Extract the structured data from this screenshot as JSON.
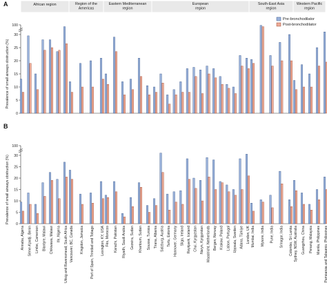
{
  "chart_data": [
    {
      "type": "bar",
      "panel_label": "A",
      "ylabel": "Prevalence of small airways obstruction (%)",
      "ylim": [
        0,
        35
      ],
      "yticks": [
        0,
        5,
        10,
        15,
        20,
        25,
        30
      ],
      "top_tick_label": "100",
      "axis_break": true,
      "legend": {
        "placement": "top-right",
        "entries": [
          {
            "name": "Pre-bronchodilator",
            "color": "#6f8fc0"
          },
          {
            "name": "Post-bronchodilator",
            "color": "#e0917c"
          }
        ]
      },
      "regions": [
        "African region",
        "Region of the Americas",
        "Eastern Mediterranean region",
        "European region",
        "South-East Asia region",
        "Western Pacific region"
      ],
      "groups": [
        {
          "values_pre": [
            13,
            29.5,
            15,
            28,
            28,
            23.5,
            33
          ],
          "values_post": [
            8,
            19,
            9,
            24,
            25,
            24,
            26.5
          ]
        },
        {
          "values_pre": [
            12,
            19,
            20,
            21
          ],
          "values_post": [
            8,
            10,
            10,
            13
          ]
        },
        {
          "values_pre": [
            15,
            29,
            12,
            13,
            21,
            10.5
          ],
          "values_post": [
            11,
            23.5,
            7,
            9,
            14,
            7
          ]
        },
        {
          "values_pre": [
            10,
            15,
            7,
            9,
            12,
            17,
            17.5,
            16.5,
            18,
            17,
            14,
            11,
            10,
            22,
            21
          ],
          "values_post": [
            8,
            11.5,
            3.5,
            7,
            8,
            8,
            14,
            7.5,
            15,
            13.5,
            11,
            9.5,
            7.5,
            18,
            17
          ]
        },
        {
          "values_pre": [
            20.5,
            33.5,
            22,
            27,
            30
          ],
          "values_post": [
            19,
            33,
            18,
            20,
            20
          ]
        },
        {
          "values_pre": [
            12.5,
            18.5,
            15,
            25,
            31
          ],
          "values_post": [
            9,
            10,
            10,
            18,
            19.5
          ]
        }
      ]
    },
    {
      "type": "bar",
      "panel_label": "B",
      "ylabel": "Prevalence of small airways obstruction (%)",
      "ylim": [
        0,
        35
      ],
      "yticks": [
        0,
        5,
        10,
        15,
        20,
        25,
        30
      ],
      "top_tick_label": "100",
      "axis_break": true,
      "groups": [
        {
          "categories": [
            "Annaba, Algeria",
            "Sème-Kpodji, Benin",
            "Limbe, Cameroon",
            "Blantyre, Malawi",
            "Chikwawa, Malawi",
            "Ife, Nigeria",
            "Uitsig and Ravensmead, South Africa"
          ],
          "values_pre": [
            9.5,
            13.5,
            8.5,
            18,
            22.5,
            19.5,
            27
          ],
          "values_post": [
            5.5,
            8.5,
            4.5,
            12,
            19,
            11,
            20.5
          ]
        },
        {
          "categories": [
            "Vancouver, BC, Canada",
            "Kingston, Jamaica",
            "Port of Spain, Trinidad and Tobago",
            "Lexington, KY, USA"
          ],
          "values_pre": [
            23.5,
            13,
            13.5,
            18.5
          ],
          "values_post": [
            19.5,
            8.5,
            9,
            11
          ]
        },
        {
          "categories": [
            "Fès, Morocco",
            "Karachi, Pakistan",
            "Riyadh, Saudi Arabia",
            "Gezeira, Sudan",
            "Khartoum, Sudan",
            "Sousse, Tunisia"
          ],
          "values_pre": [
            12.5,
            18.5,
            4.5,
            11.5,
            18,
            8
          ],
          "values_post": [
            11.5,
            14,
            3,
            7.5,
            16,
            5
          ]
        },
        {
          "categories": [
            "Tirana, Albania",
            "Salzburg, Austria",
            "Tartu, Estonia",
            "Hannover, Germany",
            "Sligo, Ireland",
            "Reykjavik, Iceland",
            "Chui, Kyrgyzstan",
            "Naryn, Kyrgyzstan",
            "Maastricht, Netherlands",
            "Bergen, Norway",
            "Krakow, Poland",
            "Lisbon, Portugal",
            "Uppsala, Sweden",
            "Adana, Türkiye",
            "London, UK"
          ],
          "values_pre": [
            11,
            31,
            13,
            14,
            14.5,
            28.5,
            20,
            19,
            29,
            28,
            18.5,
            17,
            15,
            28.5,
            30.5
          ],
          "values_post": [
            8,
            22.5,
            6,
            9.5,
            8.5,
            19.5,
            15.5,
            10,
            20.5,
            15,
            18,
            14,
            12.5,
            15,
            21
          ]
        },
        {
          "categories": [
            "Mumbai, India",
            "Mysore, India",
            "Pune, India",
            "Srinagar, India",
            "Colombo, Sri Lanka"
          ],
          "values_pre": [
            9,
            10.5,
            12.5,
            23,
            10.5
          ],
          "values_post": [
            5.5,
            9.5,
            7,
            17.5,
            7.5
          ]
        },
        {
          "categories": [
            "Sydney, NSW, Australia",
            "Guangzhou, China",
            "Penang, Malaysia",
            "Manila, Philippines",
            "Pampanga and Tabagnio, Philippines"
          ],
          "values_pre": [
            19,
            13.5,
            8.5,
            15,
            20.5
          ],
          "values_post": [
            14.5,
            8.5,
            6,
            10.5,
            15
          ]
        }
      ]
    }
  ],
  "colors": {
    "pre_fill": "#9bb3dc",
    "pre_stroke": "#3d5a8a",
    "post_fill": "#ecab97",
    "post_stroke": "#a24d35",
    "region_box": "#e9e9e9"
  }
}
